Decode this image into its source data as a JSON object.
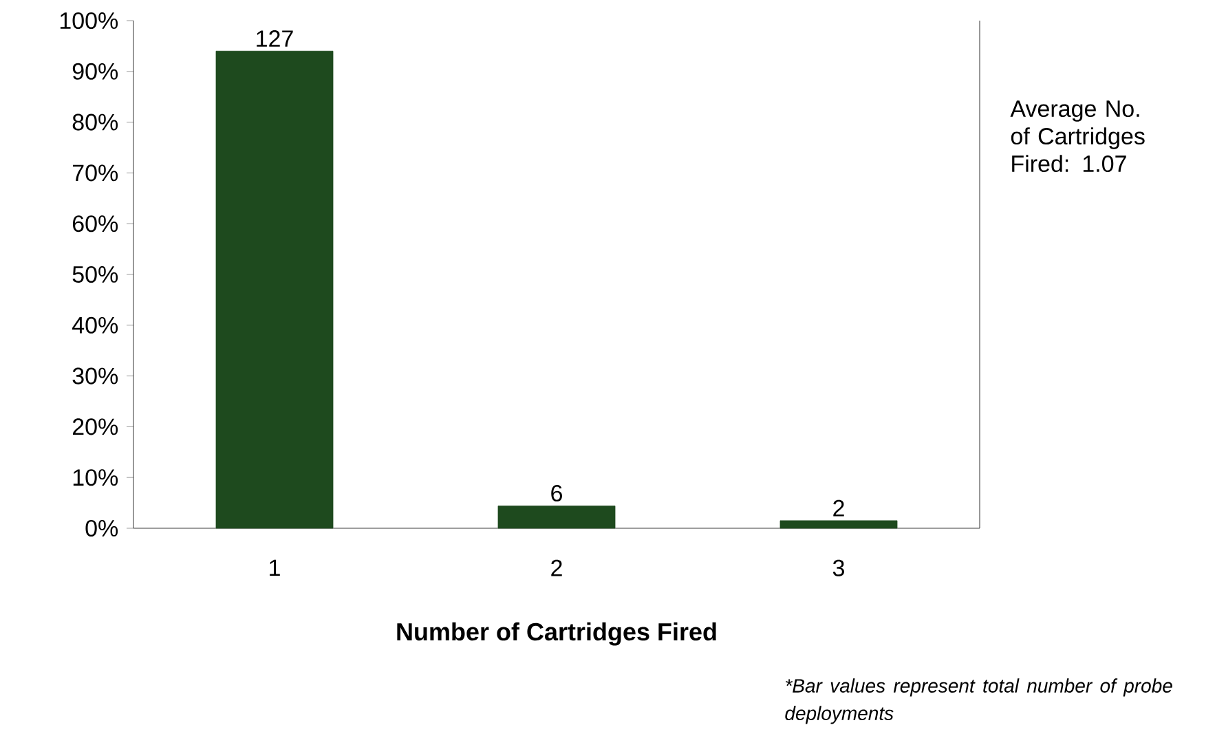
{
  "chart_data": {
    "type": "bar",
    "xlabel": "Number of Cartridges Fired",
    "categories": [
      "1",
      "2",
      "3"
    ],
    "values": [
      94,
      4.4,
      1.5
    ],
    "color": "#1e4a1e",
    "ylim": [
      0,
      100
    ],
    "yticks": [
      {
        "value": 0,
        "label": "0%"
      },
      {
        "value": 10,
        "label": "10%"
      },
      {
        "value": 20,
        "label": "20%"
      },
      {
        "value": 30,
        "label": "30%"
      },
      {
        "value": 40,
        "label": "40%"
      },
      {
        "value": 50,
        "label": "50%"
      },
      {
        "value": 60,
        "label": "60%"
      },
      {
        "value": 70,
        "label": "70%"
      },
      {
        "value": 80,
        "label": "80%"
      },
      {
        "value": 90,
        "label": "90%"
      },
      {
        "value": 100,
        "label": "100%"
      }
    ],
    "grid": false,
    "annotations": [
      {
        "text": "127",
        "x": "1",
        "y": 94
      },
      {
        "text": "6",
        "x": "2",
        "y": 4.4
      },
      {
        "text": "2",
        "x": "3",
        "y": 1.5
      },
      "Average No. of Cartridges Fired: 1.07",
      "*Bar values represent total number of probe deployments"
    ]
  }
}
